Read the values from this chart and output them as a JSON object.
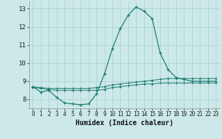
{
  "xlabel": "Humidex (Indice chaleur)",
  "background_color": "#cce8e8",
  "grid_color": "#aad4d4",
  "line_color": "#1a7a6e",
  "x_ticks": [
    0,
    1,
    2,
    3,
    4,
    5,
    6,
    7,
    8,
    9,
    10,
    11,
    12,
    13,
    14,
    15,
    16,
    17,
    18,
    19,
    20,
    21,
    22,
    23
  ],
  "y_ticks": [
    8,
    9,
    10,
    11,
    12,
    13
  ],
  "ylim": [
    7.5,
    13.4
  ],
  "xlim": [
    -0.5,
    23.5
  ],
  "series1_x": [
    0,
    1,
    2,
    3,
    4,
    5,
    6,
    7,
    8,
    9,
    10,
    11,
    12,
    13,
    14,
    15,
    16,
    17,
    18,
    19,
    20,
    21,
    22,
    23
  ],
  "series1_y": [
    8.7,
    8.4,
    8.5,
    8.1,
    7.8,
    7.75,
    7.7,
    7.75,
    8.3,
    9.4,
    10.8,
    11.9,
    12.65,
    13.1,
    12.85,
    12.45,
    10.55,
    9.65,
    9.2,
    9.1,
    9.0,
    9.0,
    9.0,
    9.0
  ],
  "series2_x": [
    0,
    1,
    2,
    3,
    4,
    5,
    6,
    7,
    8,
    9,
    10,
    11,
    12,
    13,
    14,
    15,
    16,
    17,
    18,
    19,
    20,
    21,
    22,
    23
  ],
  "series2_y": [
    8.7,
    8.65,
    8.6,
    8.6,
    8.6,
    8.6,
    8.6,
    8.6,
    8.65,
    8.7,
    8.8,
    8.85,
    8.9,
    8.95,
    9.0,
    9.05,
    9.1,
    9.15,
    9.15,
    9.15,
    9.15,
    9.15,
    9.15,
    9.15
  ],
  "series3_x": [
    0,
    1,
    2,
    3,
    4,
    5,
    6,
    7,
    8,
    9,
    10,
    11,
    12,
    13,
    14,
    15,
    16,
    17,
    18,
    19,
    20,
    21,
    22,
    23
  ],
  "series3_y": [
    8.65,
    8.6,
    8.55,
    8.5,
    8.5,
    8.5,
    8.5,
    8.5,
    8.5,
    8.55,
    8.65,
    8.7,
    8.75,
    8.8,
    8.85,
    8.85,
    8.9,
    8.9,
    8.9,
    8.9,
    8.9,
    8.9,
    8.9,
    8.9
  ]
}
